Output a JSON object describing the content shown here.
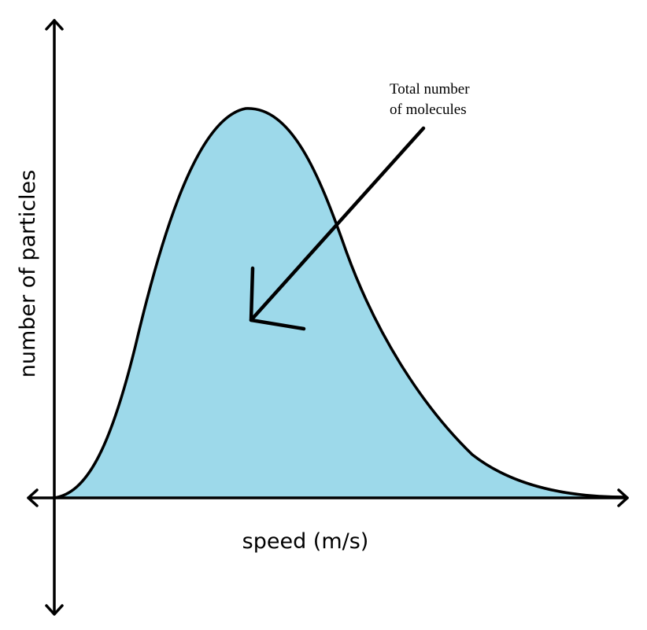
{
  "diagram": {
    "type": "speed-distribution",
    "x_axis_label": "speed (m/s)",
    "y_axis_label": "number of particles",
    "annotation": {
      "line1": "Total number",
      "line2": "of molecules"
    },
    "colors": {
      "fill": "#9dd9ea",
      "stroke": "#000000",
      "background": "#ffffff"
    }
  }
}
